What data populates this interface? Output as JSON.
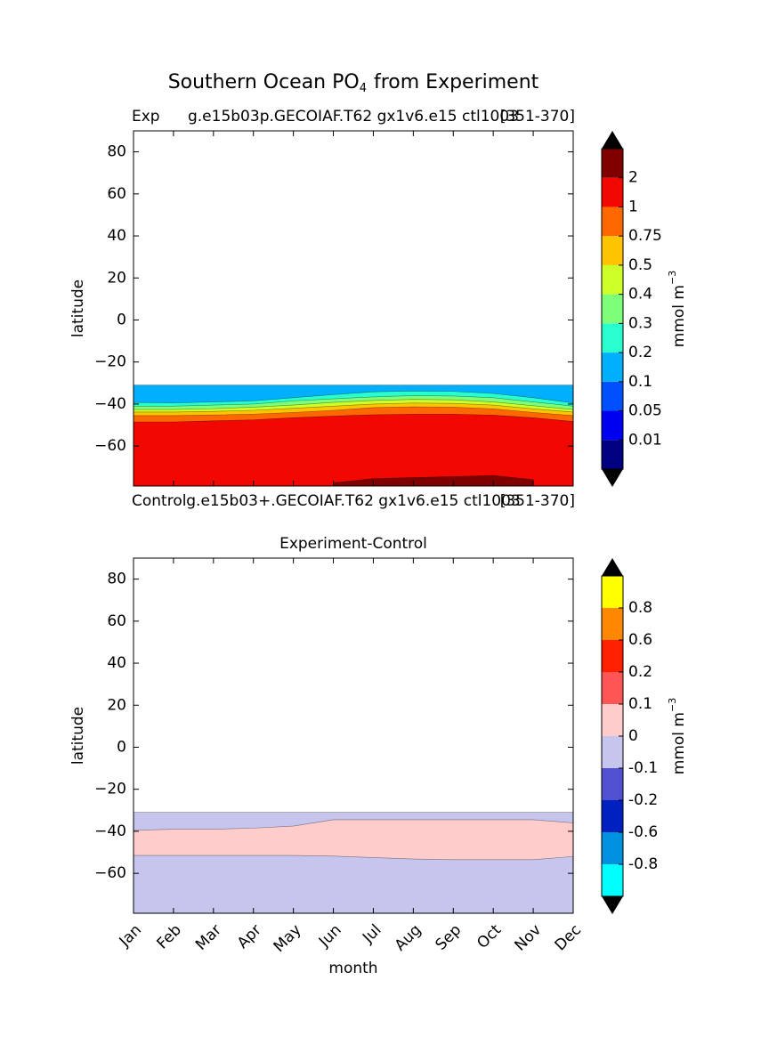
{
  "title_parts": [
    "Southern Ocean PO",
    "4",
    "from Experiment"
  ],
  "chart_data": [
    {
      "type": "contour",
      "title_left": "Exp",
      "title_center": "g.e15b03p.GECOIAF.T62 gx1v6.e15 ctl1003",
      "title_right": "[351-370]",
      "caption_left": "Control",
      "caption_center": "g.e15b03+.GECOIAF.T62 gx1v6.e15 ctl1003",
      "caption_right": "[351-370]",
      "ylabel": "latitude",
      "ylim": [
        -79,
        90
      ],
      "yticks": [
        80,
        60,
        40,
        20,
        0,
        {
          "value": -20,
          "label": "−20"
        },
        {
          "value": -40,
          "label": "−40"
        },
        {
          "value": -60,
          "label": "−60"
        }
      ],
      "colorbar": {
        "label": "mmol m",
        "label_sup": "−3",
        "ticks": [
          0.01,
          0.05,
          0.1,
          0.2,
          0.3,
          0.4,
          0.5,
          0.75,
          1,
          2
        ],
        "colors": [
          "#000080",
          "#0000f0",
          "#0050ff",
          "#00b0ff",
          "#29ffce",
          "#7dff7a",
          "#ceff29",
          "#ffc400",
          "#ff6800",
          "#f10800",
          "#800000"
        ]
      },
      "bands": [
        {
          "level": 0.1,
          "upper": [
            -31,
            -31,
            -31,
            -31,
            -31,
            -31,
            -31,
            -31,
            -31,
            -31,
            -31,
            -31
          ]
        },
        {
          "level": 0.2,
          "upper": [
            -39.2,
            -39.5,
            -39,
            -38.5,
            -37,
            -35.5,
            -34.2,
            -33.8,
            -34,
            -35,
            -37,
            -39.5
          ]
        },
        {
          "level": 0.3,
          "upper": [
            -41,
            -41,
            -40.5,
            -40,
            -38.5,
            -37.5,
            -36.6,
            -36,
            -36.2,
            -37,
            -39,
            -41
          ]
        },
        {
          "level": 0.4,
          "upper": [
            -42.6,
            -42.6,
            -42.2,
            -41.5,
            -40.5,
            -39.2,
            -38.3,
            -37.8,
            -38,
            -39,
            -40.8,
            -42.6
          ]
        },
        {
          "level": 0.5,
          "upper": [
            -43.8,
            -43.8,
            -43.5,
            -43,
            -42,
            -41,
            -40,
            -39.5,
            -39.7,
            -40.5,
            -42.3,
            -43.8
          ]
        },
        {
          "level": 0.75,
          "upper": [
            -45.5,
            -45.5,
            -45.2,
            -44.8,
            -44,
            -43,
            -41.7,
            -41.3,
            -41.5,
            -42.3,
            -44,
            -45.5
          ]
        },
        {
          "level": 1,
          "upper": [
            -48.5,
            -48.5,
            -48,
            -47.5,
            -46.5,
            -45.7,
            -45.1,
            -44.8,
            -44.8,
            -45.3,
            -46.5,
            -48.3
          ]
        },
        {
          "level": 2,
          "upper": [
            null,
            null,
            null,
            null,
            null,
            -77.5,
            -75.5,
            -75,
            -74.5,
            -74,
            -76,
            null
          ]
        }
      ]
    },
    {
      "type": "contour",
      "title": "Experiment-Control",
      "xlabel": "month",
      "ylabel": "latitude",
      "categories": [
        "Jan",
        "Feb",
        "Mar",
        "Apr",
        "May",
        "Jun",
        "Jul",
        "Aug",
        "Sep",
        "Oct",
        "Nov",
        "Dec"
      ],
      "ylim": [
        -79,
        90
      ],
      "yticks": [
        80,
        60,
        40,
        20,
        0,
        {
          "value": -20,
          "label": "−20"
        },
        {
          "value": -40,
          "label": "−40"
        },
        {
          "value": -60,
          "label": "−60"
        }
      ],
      "colorbar": {
        "label": "mmol m",
        "label_sup": "−3",
        "ticks": [
          -0.8,
          -0.6,
          -0.2,
          -0.1,
          0,
          0.1,
          0.2,
          0.6,
          0.8
        ],
        "colors": [
          "#00ffff",
          "#0090e0",
          "#0020c0",
          "#5050d0",
          "#c5c5ee",
          "#ffcccc",
          "#ff5555",
          "#ff2000",
          "#ff8800",
          "#ffff00"
        ]
      },
      "bands": [
        {
          "level": -0.1,
          "upper": [
            -31,
            -31,
            -31,
            -31,
            -31,
            -31,
            -31,
            -31,
            -31,
            -31,
            -31,
            -31
          ]
        },
        {
          "level": 0,
          "upper": [
            -39.6,
            -39,
            -39,
            -38.5,
            -37.5,
            -34.5,
            -34.5,
            -34.5,
            -34.5,
            -34.5,
            -34.5,
            -36
          ],
          "lower": [
            -51.5,
            -51.5,
            -51.5,
            -51.5,
            -51.5,
            -51.8,
            -52.5,
            -53.2,
            -53.5,
            -53.5,
            -53.5,
            -52
          ]
        }
      ]
    }
  ]
}
